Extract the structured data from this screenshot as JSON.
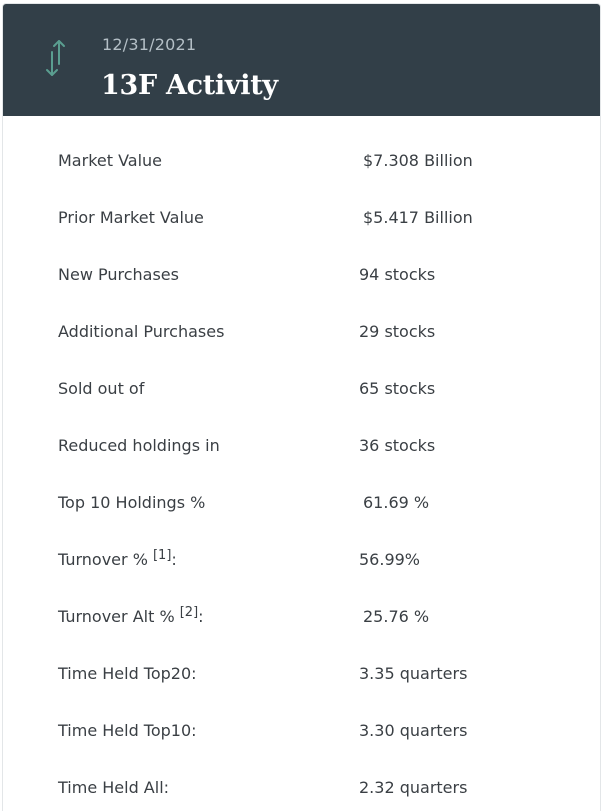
{
  "header": {
    "date": "12/31/2021",
    "title": "13F Activity",
    "icon": "up-down-arrows-icon",
    "icon_color": "#5a9e90",
    "background": "#323f48"
  },
  "rows": [
    {
      "label": "Market Value",
      "ref": "",
      "suffix": "",
      "value": "$7.308 Billion"
    },
    {
      "label": "Prior Market Value",
      "ref": "",
      "suffix": "",
      "value": "$5.417 Billion"
    },
    {
      "label": "New Purchases",
      "ref": "",
      "suffix": "",
      "value": "94 stocks"
    },
    {
      "label": "Additional Purchases",
      "ref": "",
      "suffix": "",
      "value": "29 stocks"
    },
    {
      "label": "Sold out of",
      "ref": "",
      "suffix": "",
      "value": "65 stocks"
    },
    {
      "label": "Reduced holdings in",
      "ref": "",
      "suffix": "",
      "value": "36 stocks"
    },
    {
      "label": "Top 10 Holdings %",
      "ref": "",
      "suffix": "",
      "value": "61.69 %"
    },
    {
      "label": "Turnover % ",
      "ref": "[1]",
      "suffix": ":",
      "value": "56.99%"
    },
    {
      "label": "Turnover Alt % ",
      "ref": "[2]",
      "suffix": ":",
      "value": "25.76 %"
    },
    {
      "label": "Time Held Top20:",
      "ref": "",
      "suffix": "",
      "value": "3.35 quarters"
    },
    {
      "label": "Time Held Top10:",
      "ref": "",
      "suffix": "",
      "value": "3.30 quarters"
    },
    {
      "label": "Time Held All:",
      "ref": "",
      "suffix": "",
      "value": "2.32 quarters"
    }
  ]
}
